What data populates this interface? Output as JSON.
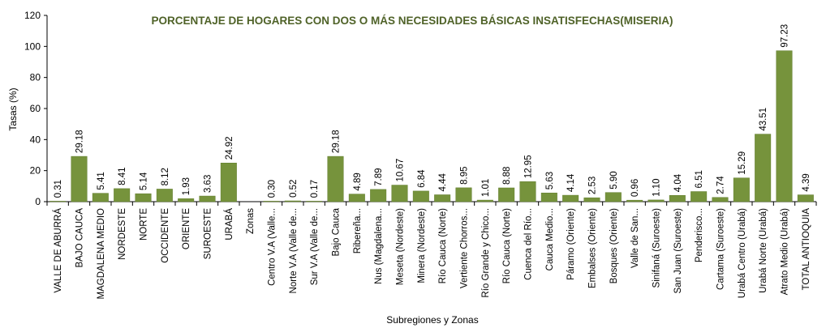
{
  "chart_data": {
    "type": "bar",
    "title": "PORCENTAJE DE HOGARES CON DOS O MÁS NECESIDADES BÁSICAS INSATISFECHAS(MISERIA)",
    "xlabel": "Subregiones y Zonas",
    "ylabel": "Tasas (%)",
    "ylim": [
      0,
      120
    ],
    "yticks": [
      0,
      20,
      40,
      60,
      80,
      100,
      120
    ],
    "grid": false,
    "categories": [
      "VALLE DE ABURRÁ",
      "BAJO CAUCA",
      "MAGDALENA MEDIO",
      "NORDESTE",
      "NORTE",
      "OCCIDENTE",
      "ORIENTE",
      "SUROESTE",
      "URABÁ",
      "Zonas",
      "Centro V.A (Valle...",
      "Norte V.A (Valle de...",
      "Sur V.A (Valle de...",
      "Bajo Cauca",
      "Ribereña...",
      "Nus (Magdalena...",
      "Meseta (Nordeste)",
      "Minera (Nordeste)",
      "Río Cauca (Norte)",
      "Vertiente Chorros...",
      "Río Grande y Chico...",
      "Río Cauca (Norte)",
      "Cuenca del Río...",
      "Cauca Medio...",
      "Páramo (Oriente)",
      "Embalses (Oriente)",
      "Bosques (Oriente)",
      "Valle de San...",
      "Sinifaná (Suroeste)",
      "San Juan (Suroeste)",
      "Penderisco...",
      "Cartama (Suroeste)",
      "Urabá Centro (Urabá)",
      "Urabá Norte (Urabá)",
      "Atrato Medio (Urabá)",
      "TOTAL ANTIOQUIA"
    ],
    "values": [
      0.31,
      29.18,
      5.41,
      8.41,
      5.14,
      8.12,
      1.93,
      3.63,
      24.92,
      null,
      0.3,
      0.52,
      0.17,
      29.18,
      4.89,
      7.89,
      10.67,
      6.84,
      4.44,
      8.95,
      1.01,
      8.88,
      12.95,
      5.63,
      4.14,
      2.53,
      5.9,
      0.96,
      1.1,
      4.04,
      6.51,
      2.74,
      15.29,
      43.51,
      97.23,
      4.39
    ],
    "labels": [
      "0.31",
      "29.18",
      "5.41",
      "8.41",
      "5.14",
      "8.12",
      "1.93",
      "3.63",
      "24.92",
      "",
      "0.30",
      "0.52",
      "0.17",
      "29.18",
      "4.89",
      "7.89",
      "10.67",
      "6.84",
      "4.44",
      "8.95",
      "1.01",
      "8.88",
      "12.95",
      "5.63",
      "4.14",
      "2.53",
      "5.90",
      "0.96",
      "1.10",
      "4.04",
      "6.51",
      "2.74",
      "15.29",
      "43.51",
      "97.23",
      "4.39"
    ],
    "colors": {
      "bar": "#76933c",
      "bar_edge": "#5e7a2a",
      "title": "#4f6228",
      "axis": "#000000"
    }
  }
}
